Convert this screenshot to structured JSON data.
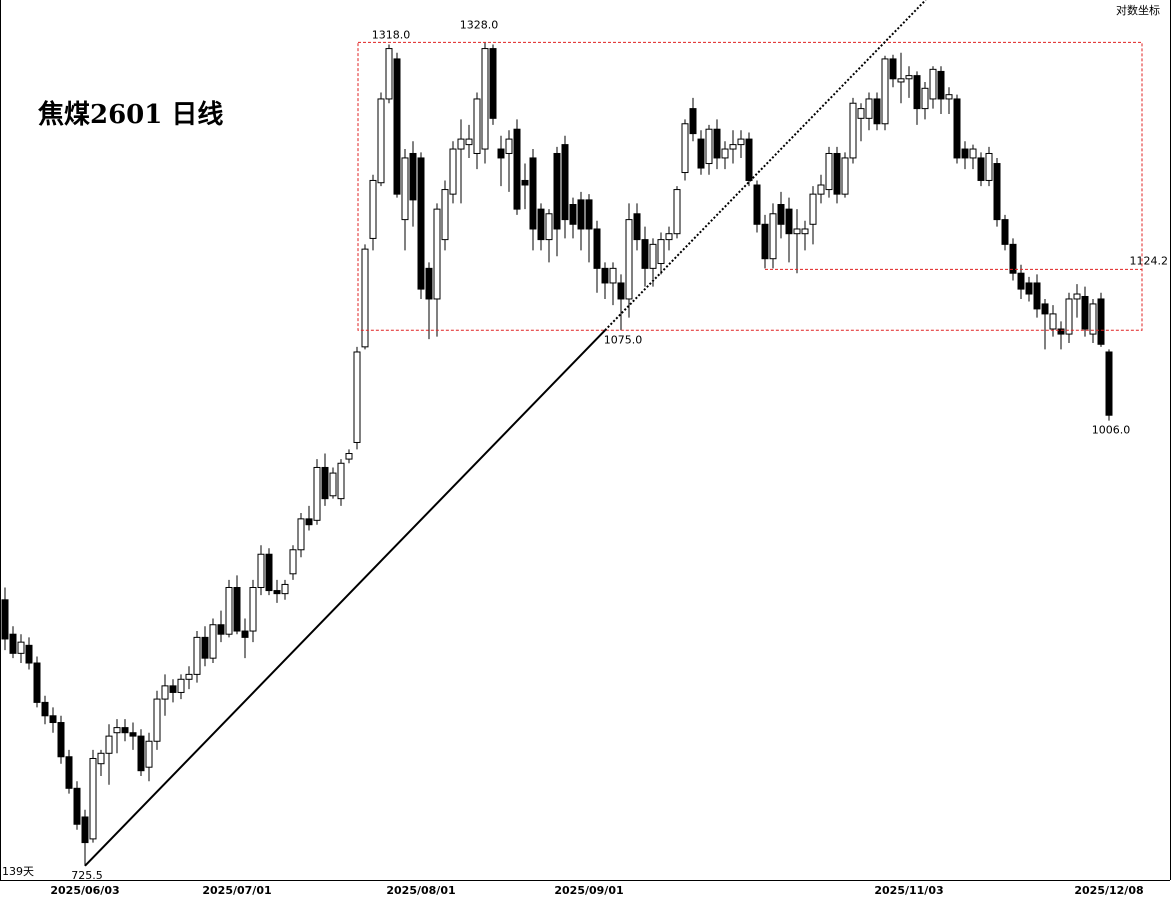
{
  "chart_data": {
    "type": "candlestick",
    "title": "焦煤2601  日线",
    "scale_label": "对数坐标",
    "period_label": "139天",
    "log_scale": true,
    "ylim": [
      718,
      1370
    ],
    "up_color": "#ffffff",
    "down_color": "#000000",
    "edge_color": "#000000",
    "box_color": "#e02020",
    "categories": [
      null,
      null,
      null,
      null,
      null,
      null,
      null,
      null,
      null,
      null,
      "2025/06/03",
      null,
      null,
      null,
      null,
      null,
      null,
      null,
      null,
      null,
      null,
      null,
      null,
      null,
      null,
      null,
      null,
      null,
      null,
      "2025/07/01",
      null,
      null,
      null,
      null,
      null,
      null,
      null,
      null,
      null,
      null,
      null,
      null,
      null,
      null,
      null,
      null,
      null,
      null,
      null,
      null,
      null,
      null,
      "2025/08/01",
      null,
      null,
      null,
      null,
      null,
      null,
      null,
      null,
      null,
      null,
      null,
      null,
      null,
      null,
      null,
      null,
      null,
      null,
      null,
      null,
      "2025/09/01",
      null,
      null,
      null,
      null,
      null,
      null,
      null,
      null,
      null,
      null,
      null,
      null,
      null,
      null,
      null,
      null,
      null,
      null,
      null,
      null,
      null,
      null,
      null,
      null,
      null,
      null,
      null,
      null,
      null,
      null,
      null,
      null,
      null,
      null,
      null,
      null,
      null,
      null,
      null,
      "2025/11/03",
      null,
      null,
      null,
      null,
      null,
      null,
      null,
      null,
      null,
      null,
      null,
      null,
      null,
      null,
      null,
      null,
      null,
      null,
      null,
      null,
      null,
      null,
      null,
      null,
      "2025/12/08"
    ],
    "candles": [
      {
        "open": 882,
        "high": 890,
        "low": 850,
        "close": 857
      },
      {
        "open": 860,
        "high": 865,
        "low": 845,
        "close": 848
      },
      {
        "open": 848,
        "high": 860,
        "low": 842,
        "close": 855
      },
      {
        "open": 853,
        "high": 858,
        "low": 838,
        "close": 842
      },
      {
        "open": 842,
        "high": 846,
        "low": 815,
        "close": 818
      },
      {
        "open": 818,
        "high": 822,
        "low": 805,
        "close": 810
      },
      {
        "open": 810,
        "high": 815,
        "low": 800,
        "close": 806
      },
      {
        "open": 806,
        "high": 810,
        "low": 782,
        "close": 786
      },
      {
        "open": 786,
        "high": 790,
        "low": 765,
        "close": 768
      },
      {
        "open": 768,
        "high": 772,
        "low": 745,
        "close": 748
      },
      {
        "open": 752,
        "high": 756,
        "low": 725.5,
        "close": 738
      },
      {
        "open": 740,
        "high": 790,
        "low": 738,
        "close": 785
      },
      {
        "open": 782,
        "high": 790,
        "low": 775,
        "close": 788
      },
      {
        "open": 788,
        "high": 805,
        "low": 770,
        "close": 798
      },
      {
        "open": 800,
        "high": 808,
        "low": 788,
        "close": 803
      },
      {
        "open": 803,
        "high": 808,
        "low": 795,
        "close": 800
      },
      {
        "open": 800,
        "high": 806,
        "low": 790,
        "close": 798
      },
      {
        "open": 798,
        "high": 802,
        "low": 775,
        "close": 778
      },
      {
        "open": 780,
        "high": 800,
        "low": 772,
        "close": 795
      },
      {
        "open": 795,
        "high": 825,
        "low": 790,
        "close": 820
      },
      {
        "open": 820,
        "high": 835,
        "low": 810,
        "close": 828
      },
      {
        "open": 828,
        "high": 832,
        "low": 818,
        "close": 824
      },
      {
        "open": 824,
        "high": 835,
        "low": 820,
        "close": 832
      },
      {
        "open": 832,
        "high": 840,
        "low": 826,
        "close": 835
      },
      {
        "open": 835,
        "high": 862,
        "low": 830,
        "close": 858
      },
      {
        "open": 858,
        "high": 865,
        "low": 840,
        "close": 845
      },
      {
        "open": 845,
        "high": 870,
        "low": 842,
        "close": 866
      },
      {
        "open": 866,
        "high": 875,
        "low": 855,
        "close": 860
      },
      {
        "open": 860,
        "high": 895,
        "low": 858,
        "close": 890
      },
      {
        "open": 890,
        "high": 898,
        "low": 860,
        "close": 862
      },
      {
        "open": 862,
        "high": 870,
        "low": 845,
        "close": 858
      },
      {
        "open": 862,
        "high": 895,
        "low": 855,
        "close": 890
      },
      {
        "open": 890,
        "high": 918,
        "low": 885,
        "close": 912
      },
      {
        "open": 912,
        "high": 916,
        "low": 885,
        "close": 888
      },
      {
        "open": 888,
        "high": 895,
        "low": 880,
        "close": 886
      },
      {
        "open": 886,
        "high": 895,
        "low": 882,
        "close": 892
      },
      {
        "open": 899,
        "high": 918,
        "low": 895,
        "close": 915
      },
      {
        "open": 915,
        "high": 940,
        "low": 910,
        "close": 936
      },
      {
        "open": 936,
        "high": 945,
        "low": 928,
        "close": 932
      },
      {
        "open": 935,
        "high": 978,
        "low": 932,
        "close": 972
      },
      {
        "open": 972,
        "high": 982,
        "low": 945,
        "close": 950
      },
      {
        "open": 952,
        "high": 972,
        "low": 950,
        "close": 968
      },
      {
        "open": 950,
        "high": 978,
        "low": 945,
        "close": 975
      },
      {
        "open": 978,
        "high": 985,
        "low": 975,
        "close": 982
      },
      {
        "open": 990,
        "high": 1062,
        "low": 985,
        "close": 1058
      },
      {
        "open": 1062,
        "high": 1145,
        "low": 1060,
        "close": 1141
      },
      {
        "open": 1150,
        "high": 1205,
        "low": 1140,
        "close": 1200
      },
      {
        "open": 1198,
        "high": 1280,
        "low": 1195,
        "close": 1274
      },
      {
        "open": 1274,
        "high": 1326,
        "low": 1270,
        "close": 1322
      },
      {
        "open": 1312,
        "high": 1318,
        "low": 1185,
        "close": 1188
      },
      {
        "open": 1166,
        "high": 1228,
        "low": 1140,
        "close": 1220
      },
      {
        "open": 1224,
        "high": 1235,
        "low": 1160,
        "close": 1183
      },
      {
        "open": 1220,
        "high": 1225,
        "low": 1100,
        "close": 1108
      },
      {
        "open": 1125,
        "high": 1130,
        "low": 1068,
        "close": 1100
      },
      {
        "open": 1100,
        "high": 1180,
        "low": 1070,
        "close": 1175
      },
      {
        "open": 1149,
        "high": 1200,
        "low": 1140,
        "close": 1192
      },
      {
        "open": 1188,
        "high": 1235,
        "low": 1180,
        "close": 1228
      },
      {
        "open": 1228,
        "high": 1255,
        "low": 1180,
        "close": 1237
      },
      {
        "open": 1232,
        "high": 1250,
        "low": 1220,
        "close": 1237
      },
      {
        "open": 1224,
        "high": 1280,
        "low": 1210,
        "close": 1274
      },
      {
        "open": 1228,
        "high": 1328,
        "low": 1215,
        "close": 1322
      },
      {
        "open": 1322,
        "high": 1326,
        "low": 1250,
        "close": 1256
      },
      {
        "open": 1228,
        "high": 1240,
        "low": 1195,
        "close": 1220
      },
      {
        "open": 1224,
        "high": 1245,
        "low": 1190,
        "close": 1237
      },
      {
        "open": 1246,
        "high": 1255,
        "low": 1170,
        "close": 1175
      },
      {
        "open": 1200,
        "high": 1215,
        "low": 1175,
        "close": 1196
      },
      {
        "open": 1220,
        "high": 1228,
        "low": 1140,
        "close": 1158
      },
      {
        "open": 1175,
        "high": 1180,
        "low": 1140,
        "close": 1149
      },
      {
        "open": 1149,
        "high": 1175,
        "low": 1130,
        "close": 1171
      },
      {
        "open": 1224,
        "high": 1230,
        "low": 1135,
        "close": 1158
      },
      {
        "open": 1232,
        "high": 1240,
        "low": 1150,
        "close": 1166
      },
      {
        "open": 1179,
        "high": 1185,
        "low": 1150,
        "close": 1162
      },
      {
        "open": 1183,
        "high": 1190,
        "low": 1140,
        "close": 1158
      },
      {
        "open": 1183,
        "high": 1188,
        "low": 1130,
        "close": 1158
      },
      {
        "open": 1158,
        "high": 1165,
        "low": 1105,
        "close": 1125
      },
      {
        "open": 1125,
        "high": 1130,
        "low": 1100,
        "close": 1113
      },
      {
        "open": 1113,
        "high": 1130,
        "low": 1095,
        "close": 1125
      },
      {
        "open": 1113,
        "high": 1120,
        "low": 1075,
        "close": 1100
      },
      {
        "open": 1100,
        "high": 1180,
        "low": 1085,
        "close": 1166
      },
      {
        "open": 1171,
        "high": 1180,
        "low": 1140,
        "close": 1149
      },
      {
        "open": 1149,
        "high": 1160,
        "low": 1110,
        "close": 1125
      },
      {
        "open": 1125,
        "high": 1150,
        "low": 1110,
        "close": 1145
      },
      {
        "open": 1129,
        "high": 1155,
        "low": 1120,
        "close": 1149
      },
      {
        "open": 1149,
        "high": 1160,
        "low": 1140,
        "close": 1154
      },
      {
        "open": 1154,
        "high": 1195,
        "low": 1150,
        "close": 1192
      },
      {
        "open": 1207,
        "high": 1255,
        "low": 1200,
        "close": 1251
      },
      {
        "open": 1265,
        "high": 1275,
        "low": 1235,
        "close": 1242
      },
      {
        "open": 1237,
        "high": 1245,
        "low": 1205,
        "close": 1211
      },
      {
        "open": 1215,
        "high": 1250,
        "low": 1205,
        "close": 1246
      },
      {
        "open": 1246,
        "high": 1255,
        "low": 1210,
        "close": 1220
      },
      {
        "open": 1220,
        "high": 1235,
        "low": 1210,
        "close": 1228
      },
      {
        "open": 1228,
        "high": 1245,
        "low": 1215,
        "close": 1232
      },
      {
        "open": 1232,
        "high": 1245,
        "low": 1220,
        "close": 1237
      },
      {
        "open": 1237,
        "high": 1243,
        "low": 1195,
        "close": 1200
      },
      {
        "open": 1196,
        "high": 1200,
        "low": 1155,
        "close": 1162
      },
      {
        "open": 1162,
        "high": 1170,
        "low": 1125,
        "close": 1133
      },
      {
        "open": 1133,
        "high": 1180,
        "low": 1125,
        "close": 1171
      },
      {
        "open": 1179,
        "high": 1190,
        "low": 1150,
        "close": 1162
      },
      {
        "open": 1175,
        "high": 1185,
        "low": 1130,
        "close": 1154
      },
      {
        "open": 1154,
        "high": 1175,
        "low": 1121,
        "close": 1158
      },
      {
        "open": 1154,
        "high": 1165,
        "low": 1140,
        "close": 1158
      },
      {
        "open": 1162,
        "high": 1195,
        "low": 1145,
        "close": 1188
      },
      {
        "open": 1188,
        "high": 1205,
        "low": 1180,
        "close": 1196
      },
      {
        "open": 1192,
        "high": 1230,
        "low": 1185,
        "close": 1224
      },
      {
        "open": 1224,
        "high": 1230,
        "low": 1180,
        "close": 1188
      },
      {
        "open": 1188,
        "high": 1225,
        "low": 1185,
        "close": 1220
      },
      {
        "open": 1220,
        "high": 1275,
        "low": 1215,
        "close": 1270
      },
      {
        "open": 1256,
        "high": 1270,
        "low": 1235,
        "close": 1265
      },
      {
        "open": 1256,
        "high": 1280,
        "low": 1245,
        "close": 1274
      },
      {
        "open": 1274,
        "high": 1280,
        "low": 1245,
        "close": 1251
      },
      {
        "open": 1251,
        "high": 1315,
        "low": 1245,
        "close": 1312
      },
      {
        "open": 1312,
        "high": 1316,
        "low": 1285,
        "close": 1293
      },
      {
        "open": 1290,
        "high": 1318,
        "low": 1270,
        "close": 1293
      },
      {
        "open": 1293,
        "high": 1305,
        "low": 1275,
        "close": 1296
      },
      {
        "open": 1296,
        "high": 1300,
        "low": 1250,
        "close": 1265
      },
      {
        "open": 1265,
        "high": 1290,
        "low": 1255,
        "close": 1284
      },
      {
        "open": 1274,
        "high": 1305,
        "low": 1265,
        "close": 1302
      },
      {
        "open": 1300,
        "high": 1305,
        "low": 1260,
        "close": 1274
      },
      {
        "open": 1274,
        "high": 1285,
        "low": 1260,
        "close": 1278
      },
      {
        "open": 1274,
        "high": 1278,
        "low": 1215,
        "close": 1220
      },
      {
        "open": 1228,
        "high": 1235,
        "low": 1210,
        "close": 1220
      },
      {
        "open": 1220,
        "high": 1232,
        "low": 1210,
        "close": 1228
      },
      {
        "open": 1220,
        "high": 1225,
        "low": 1195,
        "close": 1200
      },
      {
        "open": 1200,
        "high": 1230,
        "low": 1195,
        "close": 1224
      },
      {
        "open": 1215,
        "high": 1220,
        "low": 1160,
        "close": 1166
      },
      {
        "open": 1166,
        "high": 1170,
        "low": 1140,
        "close": 1145
      },
      {
        "open": 1145,
        "high": 1150,
        "low": 1115,
        "close": 1121
      },
      {
        "open": 1121,
        "high": 1128,
        "low": 1100,
        "close": 1108
      },
      {
        "open": 1113,
        "high": 1118,
        "low": 1098,
        "close": 1104
      },
      {
        "open": 1113,
        "high": 1120,
        "low": 1085,
        "close": 1092
      },
      {
        "open": 1096,
        "high": 1100,
        "low": 1060,
        "close": 1088
      },
      {
        "open": 1076,
        "high": 1095,
        "low": 1070,
        "close": 1088
      },
      {
        "open": 1076,
        "high": 1082,
        "low": 1060,
        "close": 1072
      },
      {
        "open": 1072,
        "high": 1105,
        "low": 1065,
        "close": 1100
      },
      {
        "open": 1100,
        "high": 1112,
        "low": 1085,
        "close": 1104
      },
      {
        "open": 1102,
        "high": 1110,
        "low": 1070,
        "close": 1076
      },
      {
        "open": 1072,
        "high": 1100,
        "low": 1065,
        "close": 1096
      },
      {
        "open": 1100,
        "high": 1105,
        "low": 1062,
        "close": 1064
      },
      {
        "open": 1058,
        "high": 1060,
        "low": 1006,
        "close": 1010
      }
    ],
    "annotations": [
      {
        "value": 1328,
        "label": "1328.0"
      },
      {
        "value": 1318,
        "label": "1318.0"
      },
      {
        "value": 1075,
        "label": "1075.0"
      },
      {
        "value": 725.5,
        "label": "725.5"
      },
      {
        "value": 1006,
        "label": "1006.0"
      },
      {
        "value": 1124.2,
        "label": "1124.2"
      }
    ]
  }
}
